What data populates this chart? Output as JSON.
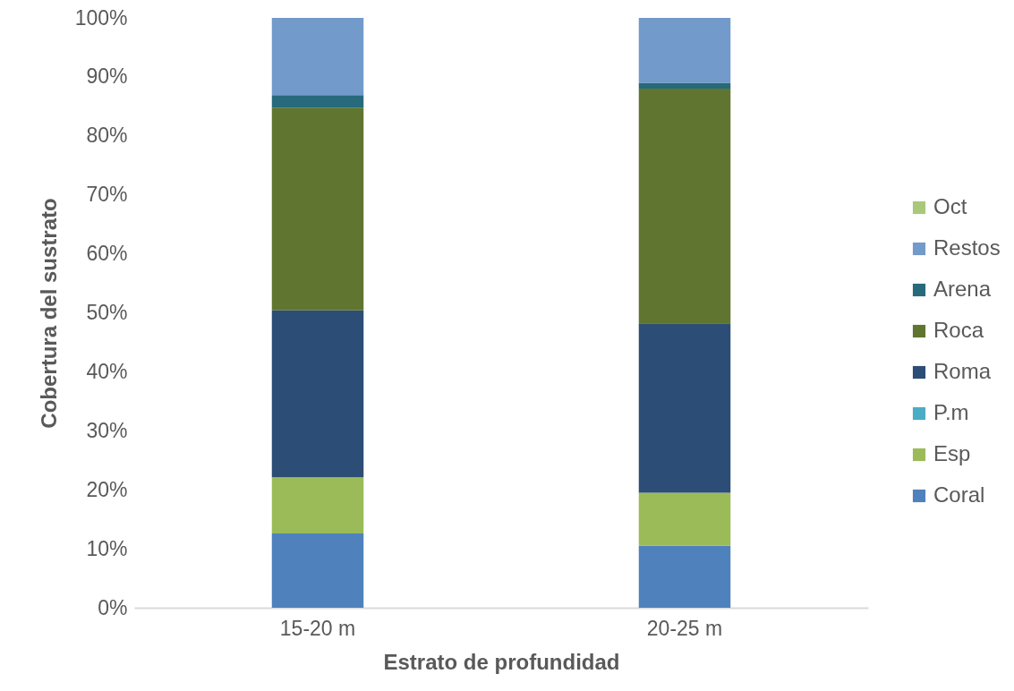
{
  "chart_data": {
    "type": "bar",
    "stacked": true,
    "xlabel": "Estrato de profundidad",
    "ylabel": "Cobertura del sustrato",
    "categories": [
      "15-20 m",
      "20-25 m"
    ],
    "series": [
      {
        "name": "Coral",
        "color": "#4f81bd",
        "values": [
          12.6,
          10.5
        ]
      },
      {
        "name": "Esp",
        "color": "#9bbb59",
        "values": [
          9.5,
          9.0
        ]
      },
      {
        "name": "P.m",
        "color": "#4bacc6",
        "values": [
          0,
          0
        ]
      },
      {
        "name": "Roma",
        "color": "#2c4d75",
        "values": [
          28.3,
          28.7
        ]
      },
      {
        "name": "Roca",
        "color": "#5f7530",
        "values": [
          34.4,
          39.8
        ]
      },
      {
        "name": "Arena",
        "color": "#276a7c",
        "values": [
          2.1,
          1.0
        ]
      },
      {
        "name": "Restos",
        "color": "#729aca",
        "values": [
          13.1,
          11.0
        ]
      },
      {
        "name": "Oct",
        "color": "#a9c97a",
        "values": [
          0,
          0
        ]
      }
    ],
    "ylim": [
      0,
      100
    ],
    "yticks": [
      {
        "value": 0,
        "label": "0%"
      },
      {
        "value": 10,
        "label": "10%"
      },
      {
        "value": 20,
        "label": "20%"
      },
      {
        "value": 30,
        "label": "30%"
      },
      {
        "value": 40,
        "label": "40%"
      },
      {
        "value": 50,
        "label": "50%"
      },
      {
        "value": 60,
        "label": "60%"
      },
      {
        "value": 70,
        "label": "70%"
      },
      {
        "value": 80,
        "label": "80%"
      },
      {
        "value": 90,
        "label": "90%"
      },
      {
        "value": 100,
        "label": "100%"
      }
    ],
    "legend": "right",
    "grid": false
  }
}
